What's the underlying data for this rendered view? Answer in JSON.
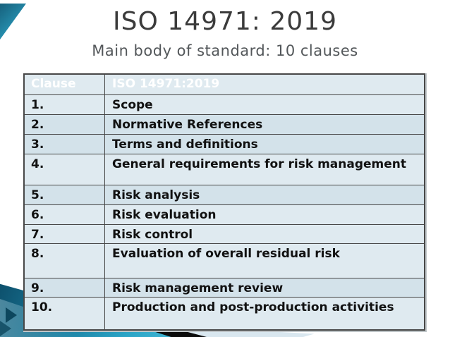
{
  "slide": {
    "title": "ISO 14971: 2019",
    "subtitle": "Main body of standard: 10 clauses"
  },
  "table": {
    "header": {
      "col1": "Clause",
      "col2": "ISO 14971:2019"
    },
    "rows": [
      {
        "clause": "1.",
        "text": "Scope"
      },
      {
        "clause": "2.",
        "text": "Normative References"
      },
      {
        "clause": "3.",
        "text": "Terms and definitions"
      },
      {
        "clause": "4.",
        "text": "General requirements for risk management"
      },
      {
        "clause": "5.",
        "text": "Risk analysis"
      },
      {
        "clause": "6.",
        "text": "Risk evaluation"
      },
      {
        "clause": "7.",
        "text": "Risk control"
      },
      {
        "clause": "8.",
        "text": "Evaluation of overall residual risk"
      },
      {
        "clause": "9.",
        "text": "Risk management review"
      },
      {
        "clause": "10.",
        "text": "Production and post-production activities"
      }
    ]
  },
  "colors": {
    "header_bg": "#2ea7bd",
    "header_text": "#ffffff",
    "row_light": "#dfeaf0",
    "row_alt": "#d3e2ea",
    "cell_border": "#474747",
    "title_text": "#3b3b3b",
    "subtitle_text": "#53575a",
    "accent_teal_dark": "#0d4f6b",
    "accent_teal": "#2ba4c6",
    "swoosh_black": "#0b0b0b",
    "swoosh_pale": "#d9e7ef"
  }
}
